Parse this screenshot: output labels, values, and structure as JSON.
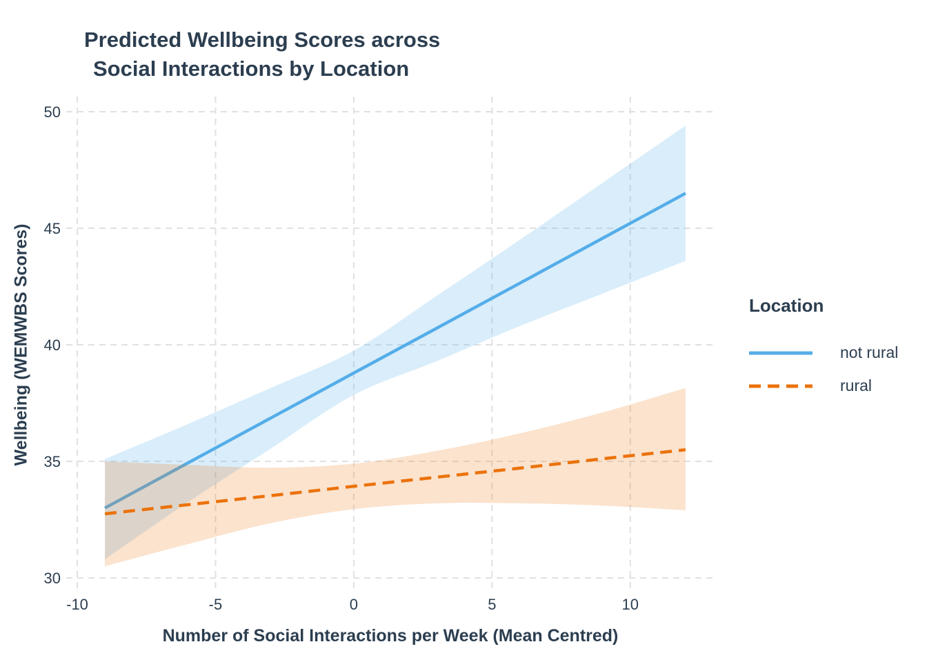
{
  "title": {
    "line1": "Predicted Wellbeing Scores across",
    "line2": "Social Interactions by Location"
  },
  "legend": {
    "title": "Location",
    "position": "right",
    "entries": [
      {
        "label": "not rural",
        "color": "#54ADE9",
        "linetype": "solid"
      },
      {
        "label": "rural",
        "color": "#EB720B",
        "linetype": "dashed"
      }
    ]
  },
  "colors": {
    "text": "#2C3E50",
    "grid": "#E0E0E0",
    "background": "#FFFFFF"
  },
  "chart_data": {
    "type": "line",
    "title": "Predicted Wellbeing Scores across Social Interactions by Location",
    "xlabel": "Number of Social Interactions per Week (Mean Centred)",
    "ylabel": "Wellbeing (WEMWBS Scores)",
    "x_ticks": [
      -10,
      -5,
      0,
      5,
      10
    ],
    "y_ticks": [
      30,
      35,
      40,
      45,
      50
    ],
    "xlim": [
      -10.4,
      13.05
    ],
    "ylim": [
      29.47,
      50.65
    ],
    "grid": "dashed",
    "legend_position": "right",
    "x": [
      -9,
      -6,
      -3,
      0,
      3,
      6,
      9,
      12
    ],
    "series": [
      {
        "name": "not rural",
        "color": "#54ADE9",
        "linetype": "solid",
        "ribbon_opacity": 0.22,
        "y": [
          33.0,
          34.93,
          36.86,
          38.79,
          40.71,
          42.64,
          44.57,
          46.5
        ],
        "ci_upper": [
          35.1,
          36.6,
          38.15,
          39.75,
          42.1,
          44.5,
          46.95,
          49.4
        ],
        "ci_lower": [
          30.8,
          33.25,
          35.55,
          37.85,
          39.3,
          40.8,
          42.2,
          43.6
        ]
      },
      {
        "name": "rural",
        "color": "#EB720B",
        "linetype": "dashed",
        "ribbon_opacity": 0.2,
        "y": [
          32.75,
          33.14,
          33.53,
          33.93,
          34.32,
          34.71,
          35.11,
          35.5
        ],
        "ci_upper": [
          35.0,
          34.85,
          34.73,
          34.9,
          35.45,
          36.2,
          37.1,
          38.15
        ],
        "ci_lower": [
          30.5,
          31.45,
          32.35,
          32.95,
          33.2,
          33.2,
          33.1,
          32.9
        ]
      }
    ]
  }
}
